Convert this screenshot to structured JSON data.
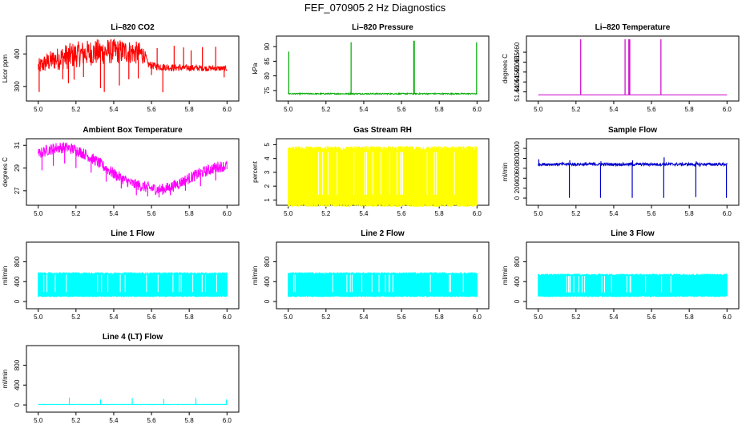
{
  "figure": {
    "title": "FEF_070905  2 Hz Diagnostics"
  },
  "chart_data": [
    {
      "type": "line",
      "title": "Li–820 CO2",
      "xlabel": "",
      "ylabel": "Licor ppm",
      "color": "#ff0000",
      "xlim": [
        4.98,
        6.02
      ],
      "ylim": [
        265,
        445
      ],
      "x_ticks": [
        "5.0",
        "5.2",
        "5.4",
        "5.6",
        "5.8",
        "6.0"
      ],
      "y_ticks": [
        "300",
        "400"
      ],
      "style": "noisy_band",
      "series": [
        {
          "points": [
            [
              5.0,
              360
            ],
            [
              5.05,
              375
            ],
            [
              5.1,
              385
            ],
            [
              5.15,
              392
            ],
            [
              5.2,
              398
            ],
            [
              5.25,
              402
            ],
            [
              5.3,
              405
            ],
            [
              5.35,
              407
            ],
            [
              5.4,
              408
            ],
            [
              5.45,
              407
            ],
            [
              5.5,
              405
            ],
            [
              5.55,
              400
            ],
            [
              5.57,
              390
            ],
            [
              5.58,
              368
            ],
            [
              5.62,
              362
            ],
            [
              5.7,
              358
            ],
            [
              5.8,
              357
            ],
            [
              5.9,
              356
            ],
            [
              6.0,
              355
            ]
          ]
        }
      ],
      "band": [
        [
          5.0,
          25
        ],
        [
          5.05,
          30
        ],
        [
          5.15,
          40
        ],
        [
          5.35,
          40
        ],
        [
          5.55,
          35
        ],
        [
          5.57,
          12
        ],
        [
          6.0,
          8
        ]
      ],
      "spikes": [
        [
          5.005,
          283
        ],
        [
          5.03,
          380
        ],
        [
          5.13,
          322
        ],
        [
          5.16,
          310
        ],
        [
          5.19,
          321
        ],
        [
          5.24,
          329
        ],
        [
          5.28,
          412
        ],
        [
          5.33,
          295
        ],
        [
          5.35,
          283
        ],
        [
          5.43,
          303
        ],
        [
          5.48,
          322
        ],
        [
          5.53,
          325
        ],
        [
          5.55,
          410
        ],
        [
          5.6,
          335
        ],
        [
          5.63,
          418
        ],
        [
          5.66,
          282
        ],
        [
          5.72,
          425
        ],
        [
          5.77,
          420
        ],
        [
          5.81,
          411
        ],
        [
          5.87,
          421
        ],
        [
          5.94,
          422
        ],
        [
          5.985,
          328
        ]
      ]
    },
    {
      "type": "line",
      "title": "Li–820 Pressure",
      "xlabel": "",
      "ylabel": "kPa",
      "color": "#00aa00",
      "xlim": [
        4.98,
        6.02
      ],
      "ylim": [
        72.5,
        92.5
      ],
      "x_ticks": [
        "5.0",
        "5.2",
        "5.4",
        "5.6",
        "5.8",
        "6.0"
      ],
      "y_ticks": [
        "75",
        "80",
        "85",
        "90"
      ],
      "style": "noisy_band",
      "series": [
        {
          "points": [
            [
              5.0,
              73.9
            ],
            [
              6.0,
              73.9
            ]
          ]
        }
      ],
      "band": [
        [
          5.0,
          0.2
        ],
        [
          6.0,
          0.2
        ]
      ],
      "spikes": [
        [
          5.003,
          88.3
        ],
        [
          5.333,
          91.5
        ],
        [
          5.665,
          92.0
        ],
        [
          5.668,
          92.0
        ],
        [
          5.998,
          91.5
        ]
      ]
    },
    {
      "type": "line",
      "title": "Li–820 Temperature",
      "xlabel": "",
      "ylabel": "degrees C",
      "color": "#cc00cc",
      "xlim": [
        4.98,
        6.02
      ],
      "ylim": [
        51.437,
        51.4665
      ],
      "x_ticks": [
        "5.0",
        "5.2",
        "5.4",
        "5.6",
        "5.8",
        "6.0"
      ],
      "y_ticks": [
        "51.440",
        "51.445",
        "51.450",
        "51.455",
        "51.460"
      ],
      "style": "step",
      "series": [
        {
          "points": [
            [
              5.0,
              51.4385
            ],
            [
              6.0,
              51.4385
            ]
          ]
        }
      ],
      "band": [],
      "spikes": [
        [
          5.225,
          51.4665
        ],
        [
          5.46,
          51.4665
        ],
        [
          5.48,
          51.4665
        ],
        [
          5.485,
          51.4665
        ],
        [
          5.65,
          51.4665
        ]
      ]
    },
    {
      "type": "line",
      "title": "Ambient Box Temperature",
      "xlabel": "",
      "ylabel": "degrees C",
      "color": "#ff00ff",
      "xlim": [
        4.98,
        6.02
      ],
      "ylim": [
        26.0,
        31.3
      ],
      "x_ticks": [
        "5.0",
        "5.2",
        "5.4",
        "5.6",
        "5.8",
        "6.0"
      ],
      "y_ticks": [
        "27",
        "29",
        "31"
      ],
      "style": "noisy_band",
      "series": [
        {
          "points": [
            [
              5.0,
              30.2
            ],
            [
              5.05,
              30.6
            ],
            [
              5.1,
              30.8
            ],
            [
              5.15,
              30.8
            ],
            [
              5.2,
              30.6
            ],
            [
              5.25,
              30.2
            ],
            [
              5.3,
              29.7
            ],
            [
              5.35,
              29.1
            ],
            [
              5.4,
              28.5
            ],
            [
              5.45,
              28.0
            ],
            [
              5.5,
              27.6
            ],
            [
              5.55,
              27.4
            ],
            [
              5.6,
              27.2
            ],
            [
              5.65,
              27.1
            ],
            [
              5.7,
              27.3
            ],
            [
              5.75,
              27.7
            ],
            [
              5.8,
              28.1
            ],
            [
              5.85,
              28.5
            ],
            [
              5.9,
              28.8
            ],
            [
              5.95,
              29.1
            ],
            [
              6.0,
              29.2
            ]
          ]
        }
      ],
      "band": [
        [
          5.0,
          0.5
        ],
        [
          6.0,
          0.5
        ]
      ],
      "spikes": [
        [
          5.02,
          28.8
        ],
        [
          5.08,
          29.2
        ],
        [
          5.14,
          29.4
        ],
        [
          5.2,
          29.0
        ],
        [
          5.28,
          28.6
        ],
        [
          5.36,
          27.8
        ],
        [
          5.44,
          27.2
        ],
        [
          5.52,
          26.6
        ],
        [
          5.58,
          26.5
        ],
        [
          5.64,
          26.4
        ],
        [
          5.7,
          26.6
        ],
        [
          5.78,
          27.0
        ],
        [
          5.86,
          27.4
        ],
        [
          5.94,
          27.9
        ]
      ]
    },
    {
      "type": "line",
      "title": "Gas Stream RH",
      "xlabel": "",
      "ylabel": "percent",
      "color": "#ffff00",
      "xlim": [
        4.98,
        6.02
      ],
      "ylim": [
        0.85,
        5.2
      ],
      "x_ticks": [
        "5.0",
        "5.2",
        "5.4",
        "5.6",
        "5.8",
        "6.0"
      ],
      "y_ticks": [
        "1",
        "2",
        "3",
        "4",
        "5"
      ],
      "style": "dense",
      "series": [
        {
          "points": [
            [
              5.0,
              2.7
            ],
            [
              6.0,
              2.7
            ]
          ]
        }
      ],
      "band": [
        [
          5.0,
          2.2
        ],
        [
          6.0,
          2.2
        ]
      ],
      "spikes": []
    },
    {
      "type": "line",
      "title": "Sample Flow",
      "xlabel": "",
      "ylabel": "ml/min",
      "color": "#0000cc",
      "xlim": [
        4.98,
        6.02
      ],
      "ylim": [
        -80,
        1130
      ],
      "x_ticks": [
        "5.0",
        "5.2",
        "5.4",
        "5.6",
        "5.8",
        "6.0"
      ],
      "y_ticks": [
        "0",
        "200",
        "400",
        "600",
        "800",
        "1000"
      ],
      "style": "noisy_band",
      "series": [
        {
          "points": [
            [
              5.0,
              680
            ],
            [
              6.0,
              680
            ]
          ]
        }
      ],
      "band": [
        [
          5.0,
          30
        ],
        [
          6.0,
          30
        ]
      ],
      "spikes": [
        [
          5.003,
          780
        ],
        [
          5.165,
          5
        ],
        [
          5.167,
          760
        ],
        [
          5.33,
          5
        ],
        [
          5.332,
          740
        ],
        [
          5.498,
          5
        ],
        [
          5.5,
          760
        ],
        [
          5.665,
          5
        ],
        [
          5.667,
          820
        ],
        [
          5.835,
          20
        ],
        [
          5.837,
          740
        ],
        [
          5.997,
          5
        ]
      ]
    },
    {
      "type": "line",
      "title": "Line 1 Flow",
      "xlabel": "",
      "ylabel": "ml/min",
      "color": "#00ffff",
      "xlim": [
        4.98,
        6.02
      ],
      "ylim": [
        -80,
        1130
      ],
      "x_ticks": [
        "5.0",
        "5.2",
        "5.4",
        "5.6",
        "5.8",
        "6.0"
      ],
      "y_ticks": [
        "0",
        "400",
        "800"
      ],
      "style": "dense",
      "series": [
        {
          "points": [
            [
              5.0,
              340
            ],
            [
              6.0,
              340
            ]
          ]
        }
      ],
      "band": [
        [
          5.0,
          250
        ],
        [
          6.0,
          250
        ]
      ],
      "spikes": []
    },
    {
      "type": "line",
      "title": "Line 2 Flow",
      "xlabel": "",
      "ylabel": "ml/min",
      "color": "#00ffff",
      "xlim": [
        4.98,
        6.02
      ],
      "ylim": [
        -80,
        1130
      ],
      "x_ticks": [
        "5.0",
        "5.2",
        "5.4",
        "5.6",
        "5.8",
        "6.0"
      ],
      "y_ticks": [
        "0",
        "400",
        "800"
      ],
      "style": "dense",
      "series": [
        {
          "points": [
            [
              5.0,
              340
            ],
            [
              6.0,
              340
            ]
          ]
        }
      ],
      "band": [
        [
          5.0,
          250
        ],
        [
          6.0,
          250
        ]
      ],
      "spikes": []
    },
    {
      "type": "line",
      "title": "Line 3 Flow",
      "xlabel": "",
      "ylabel": "ml/min",
      "color": "#00ffff",
      "xlim": [
        4.98,
        6.02
      ],
      "ylim": [
        -80,
        1130
      ],
      "x_ticks": [
        "5.0",
        "5.2",
        "5.4",
        "5.6",
        "5.8",
        "6.0"
      ],
      "y_ticks": [
        "0",
        "400",
        "800"
      ],
      "style": "dense",
      "series": [
        {
          "points": [
            [
              5.0,
              325
            ],
            [
              6.0,
              325
            ]
          ]
        }
      ],
      "band": [
        [
          5.0,
          235
        ],
        [
          6.0,
          235
        ]
      ],
      "spikes": []
    },
    {
      "type": "line",
      "title": "Line 4 (LT) Flow",
      "xlabel": "",
      "ylabel": "ml/min",
      "color": "#00ffff",
      "xlim": [
        4.98,
        6.02
      ],
      "ylim": [
        -80,
        1130
      ],
      "x_ticks": [
        "5.0",
        "5.2",
        "5.4",
        "5.6",
        "5.8",
        "6.0"
      ],
      "y_ticks": [
        "0",
        "400",
        "800"
      ],
      "style": "noisy_band",
      "series": [
        {
          "points": [
            [
              5.0,
              10
            ],
            [
              6.0,
              10
            ]
          ]
        }
      ],
      "band": [
        [
          5.0,
          4
        ],
        [
          6.0,
          4
        ]
      ],
      "spikes": [
        [
          5.165,
          150
        ],
        [
          5.33,
          110
        ],
        [
          5.498,
          140
        ],
        [
          5.665,
          120
        ],
        [
          5.835,
          140
        ],
        [
          5.997,
          110
        ]
      ]
    }
  ]
}
